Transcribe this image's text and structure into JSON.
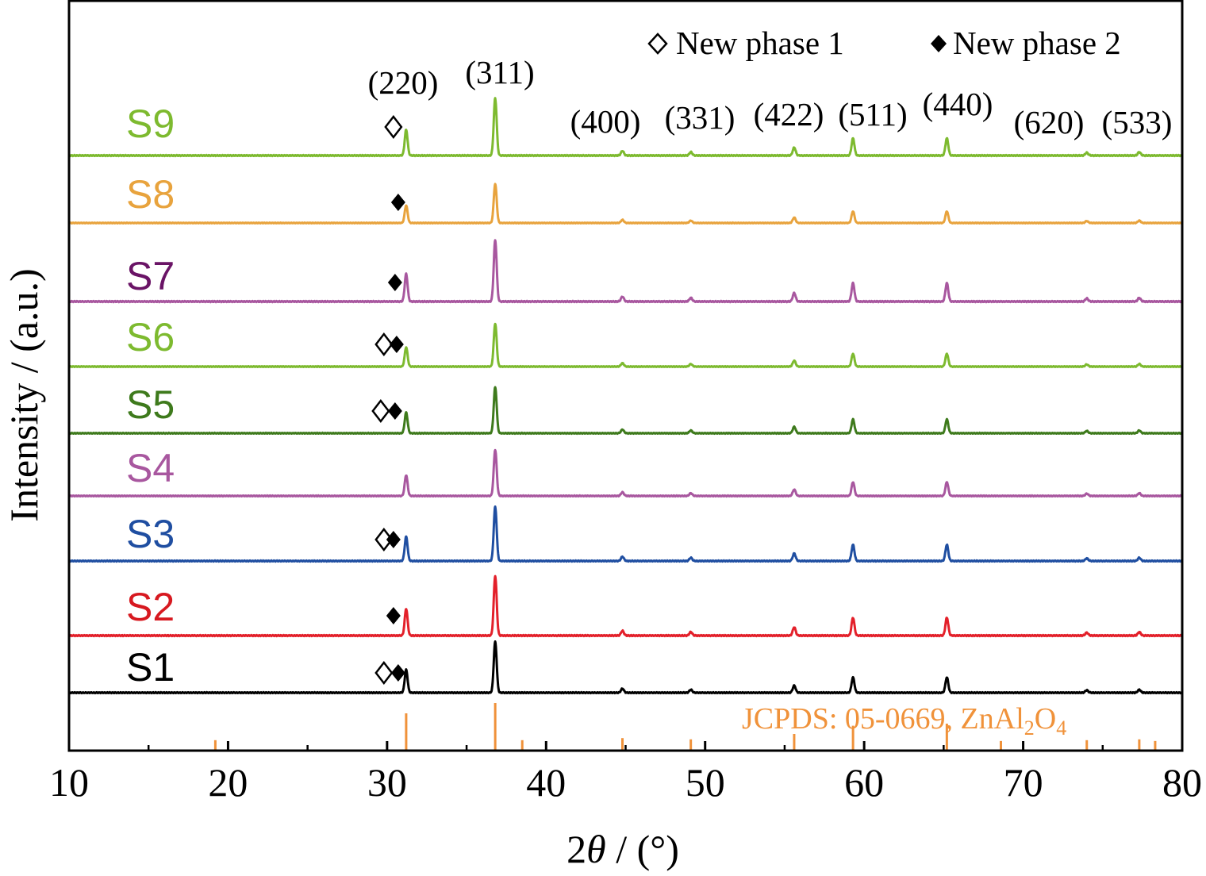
{
  "chart_data": {
    "type": "line",
    "xlabel": "2θ / (°)",
    "xlabel_parts": {
      "prefix": "2",
      "theta": "θ",
      "suffix": " / (°)"
    },
    "ylabel": "Intensity / (a.u.)",
    "xlim": [
      10,
      80
    ],
    "x_ticks": [
      10,
      20,
      30,
      40,
      50,
      60,
      70,
      80
    ],
    "x_minor_step": 5,
    "grid": false,
    "legend_placement": "top-right",
    "legend": [
      {
        "label": "New phase 1",
        "marker": "open-diamond"
      },
      {
        "label": "New phase 2",
        "marker": "filled-diamond"
      }
    ],
    "peaks": [
      {
        "hkl": "(220)",
        "x": 31.2,
        "rel": 0.45
      },
      {
        "hkl": "(311)",
        "x": 36.8,
        "rel": 1.0
      },
      {
        "hkl": "(400)",
        "x": 44.8,
        "rel": 0.08
      },
      {
        "hkl": "(331)",
        "x": 49.1,
        "rel": 0.06
      },
      {
        "hkl": "(422)",
        "x": 55.6,
        "rel": 0.14
      },
      {
        "hkl": "(511)",
        "x": 59.3,
        "rel": 0.3
      },
      {
        "hkl": "(440)",
        "x": 65.2,
        "rel": 0.3
      },
      {
        "hkl": "(620)",
        "x": 74.0,
        "rel": 0.05
      },
      {
        "hkl": "(533)",
        "x": 77.3,
        "rel": 0.06
      }
    ],
    "series": [
      {
        "name": "S1",
        "color": "#000000",
        "label_color": "#000000",
        "markers": [
          {
            "type": "open",
            "x": 29.8
          },
          {
            "type": "filled",
            "x": 30.7
          }
        ]
      },
      {
        "name": "S2",
        "color": "#e3202a",
        "label_color": "#d71920",
        "markers": [
          {
            "type": "filled",
            "x": 30.4
          }
        ]
      },
      {
        "name": "S3",
        "color": "#1f4ea1",
        "label_color": "#1f4ea1",
        "markers": [
          {
            "type": "open",
            "x": 29.8
          },
          {
            "type": "filled",
            "x": 30.4
          }
        ]
      },
      {
        "name": "S4",
        "color": "#a8579f",
        "label_color": "#a8579f",
        "markers": []
      },
      {
        "name": "S5",
        "color": "#3e7a1c",
        "label_color": "#3e7a1c",
        "markers": [
          {
            "type": "open",
            "x": 29.6
          },
          {
            "type": "filled",
            "x": 30.5
          }
        ]
      },
      {
        "name": "S6",
        "color": "#7dba2f",
        "label_color": "#7dba2f",
        "markers": [
          {
            "type": "open",
            "x": 29.8
          },
          {
            "type": "filled",
            "x": 30.6
          }
        ]
      },
      {
        "name": "S7",
        "color": "#a8579f",
        "label_color": "#6a1466",
        "markers": [
          {
            "type": "filled",
            "x": 30.5
          }
        ]
      },
      {
        "name": "S8",
        "color": "#e8a33d",
        "label_color": "#e8a33d",
        "markers": [
          {
            "type": "filled",
            "x": 30.7
          }
        ]
      },
      {
        "name": "S9",
        "color": "#7dba2f",
        "label_color": "#7dba2f",
        "markers": [
          {
            "type": "open",
            "x": 30.4
          }
        ]
      }
    ],
    "reference": {
      "label_parts": {
        "a": "JCPDS: 05-0669, ZnAl",
        "b": "2",
        "c": "O",
        "d": "4"
      },
      "label": "JCPDS: 05-0669, ZnAl2O4",
      "color": "#f0923a",
      "lines": [
        {
          "x": 19.2,
          "rel": 0.1
        },
        {
          "x": 31.2,
          "rel": 0.75
        },
        {
          "x": 36.8,
          "rel": 1.0
        },
        {
          "x": 38.5,
          "rel": 0.1
        },
        {
          "x": 44.8,
          "rel": 0.15
        },
        {
          "x": 49.1,
          "rel": 0.12
        },
        {
          "x": 55.6,
          "rel": 0.25
        },
        {
          "x": 59.3,
          "rel": 0.45
        },
        {
          "x": 65.2,
          "rel": 0.5
        },
        {
          "x": 68.6,
          "rel": 0.08
        },
        {
          "x": 74.0,
          "rel": 0.1
        },
        {
          "x": 77.3,
          "rel": 0.12
        },
        {
          "x": 78.3,
          "rel": 0.08
        }
      ]
    }
  }
}
